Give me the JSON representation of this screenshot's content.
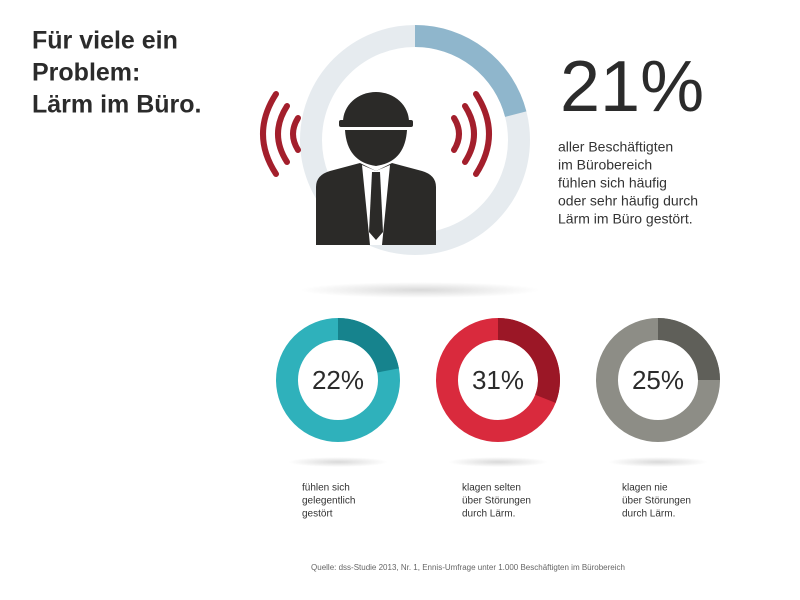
{
  "title": [
    "Für viele ein",
    "Problem:",
    "Lärm im Büro."
  ],
  "main_stat": {
    "value": 21,
    "label": "21%",
    "color": "#8fb6cc",
    "track_color": "#e6ebef",
    "text": [
      "aller Beschäftigten",
      "im Bürobereich",
      "fühlen sich häufig",
      "oder sehr häufig durch",
      "Lärm im Büro gestört."
    ]
  },
  "donuts": [
    {
      "value": 22,
      "label": "22%",
      "color": "#16838d",
      "track_color": "#2fb1bb",
      "caption": [
        "fühlen sich",
        "gelegentlich",
        "gestört"
      ]
    },
    {
      "value": 31,
      "label": "31%",
      "color": "#9b1726",
      "track_color": "#d92a3d",
      "caption": [
        "klagen selten",
        "über Störungen",
        "durch Lärm."
      ]
    },
    {
      "value": 25,
      "label": "25%",
      "color": "#5f5f59",
      "track_color": "#8d8d86",
      "caption": [
        "klagen nie",
        "über Störungen",
        "durch Lärm."
      ]
    }
  ],
  "source": "Quelle: dss-Studie 2013, Nr. 1, Ennis-Umfrage unter 1.000 Beschäftigten im Bürobereich"
}
